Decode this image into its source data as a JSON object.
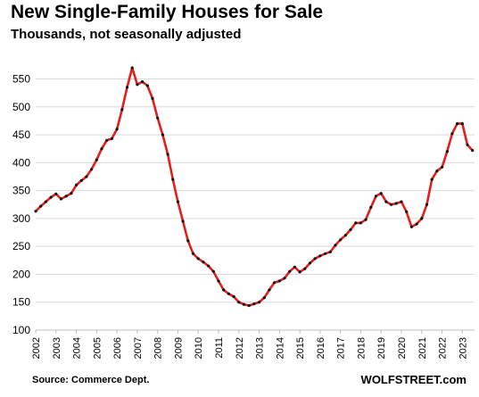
{
  "chart_data": {
    "type": "line",
    "title": "New Single-Family Houses for Sale",
    "subtitle": "Thousands, not seasonally adjusted",
    "xlabel": "",
    "ylabel": "",
    "ylim": [
      100,
      570
    ],
    "yticks": [
      100,
      150,
      200,
      250,
      300,
      350,
      400,
      450,
      500,
      550
    ],
    "xticks": [
      "2002",
      "2003",
      "2004",
      "2005",
      "2006",
      "2007",
      "2008",
      "2009",
      "2010",
      "2011",
      "2012",
      "2013",
      "2014",
      "2015",
      "2016",
      "2017",
      "2018",
      "2019",
      "2020",
      "2021",
      "2022",
      "2023"
    ],
    "xlim": [
      2002.0,
      2023.6
    ],
    "grid": "horizontal",
    "line_color": "#e0201c",
    "marker_color": "#111111",
    "series": [
      {
        "x": [
          2002.0,
          2002.25,
          2002.5,
          2002.75,
          2003.0,
          2003.25,
          2003.5,
          2003.75,
          2004.0,
          2004.25,
          2004.5,
          2004.75,
          2005.0,
          2005.25,
          2005.5,
          2005.75,
          2006.0,
          2006.25,
          2006.5,
          2006.75,
          2007.0,
          2007.25,
          2007.5,
          2007.75,
          2008.0,
          2008.25,
          2008.5,
          2008.75,
          2009.0,
          2009.25,
          2009.5,
          2009.75,
          2010.0,
          2010.25,
          2010.5,
          2010.75,
          2011.0,
          2011.25,
          2011.5,
          2011.75,
          2012.0,
          2012.25,
          2012.5,
          2012.75,
          2013.0,
          2013.25,
          2013.5,
          2013.75,
          2014.0,
          2014.25,
          2014.5,
          2014.75,
          2015.0,
          2015.25,
          2015.5,
          2015.75,
          2016.0,
          2016.25,
          2016.5,
          2016.75,
          2017.0,
          2017.25,
          2017.5,
          2017.75,
          2018.0,
          2018.25,
          2018.5,
          2018.75,
          2019.0,
          2019.25,
          2019.5,
          2019.75,
          2020.0,
          2020.25,
          2020.5,
          2020.75,
          2021.0,
          2021.25,
          2021.5,
          2021.75,
          2022.0,
          2022.25,
          2022.5,
          2022.75,
          2023.0,
          2023.25,
          2023.5
        ],
        "values": [
          313,
          322,
          330,
          338,
          344,
          335,
          340,
          345,
          360,
          368,
          375,
          388,
          405,
          425,
          440,
          443,
          460,
          495,
          535,
          570,
          540,
          545,
          538,
          515,
          480,
          450,
          415,
          370,
          330,
          295,
          260,
          237,
          228,
          222,
          215,
          205,
          188,
          172,
          165,
          160,
          150,
          146,
          144,
          147,
          150,
          158,
          172,
          185,
          188,
          193,
          205,
          213,
          204,
          210,
          220,
          228,
          233,
          237,
          240,
          252,
          262,
          270,
          280,
          292,
          292,
          298,
          320,
          340,
          345,
          330,
          325,
          327,
          330,
          312,
          285,
          290,
          300,
          325,
          370,
          385,
          392,
          420,
          452,
          470,
          470,
          432,
          422
        ]
      }
    ]
  },
  "footer": {
    "source": "Source: Commerce Dept.",
    "brand": "WOLFSTREET.com"
  }
}
